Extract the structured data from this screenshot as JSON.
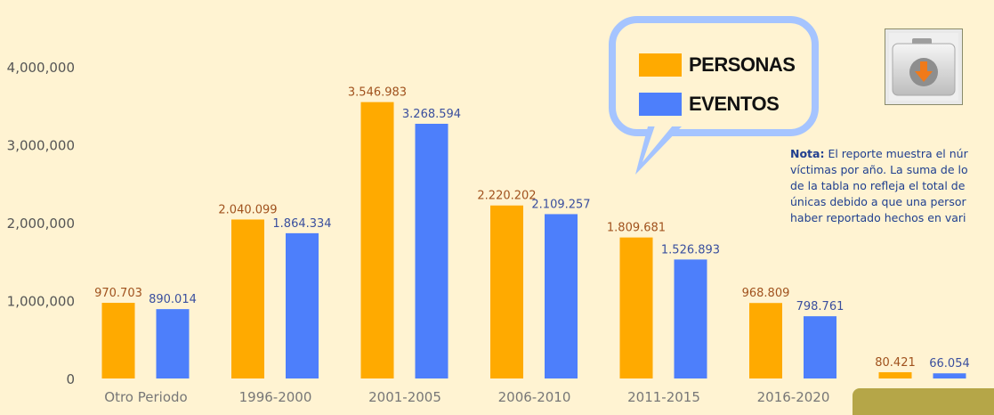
{
  "chart_data": {
    "type": "bar",
    "categories": [
      "Otro Periodo",
      "1996-2000",
      "2001-2005",
      "2006-2010",
      "2011-2015",
      "2016-2020",
      ""
    ],
    "series": [
      {
        "name": "PERSONAS",
        "color": "#ffaa00",
        "label_color": "#a0521e",
        "values": [
          970703,
          2040099,
          3546983,
          2220202,
          1809681,
          968809,
          80421
        ],
        "labels": [
          "970.703",
          "2.040.099",
          "3.546.983",
          "2.220.202",
          "1.809.681",
          "968.809",
          "80.421"
        ]
      },
      {
        "name": "EVENTOS",
        "color": "#4d7ffb",
        "label_color": "#3a4f9e",
        "values": [
          890014,
          1864334,
          3268594,
          2109257,
          1526893,
          798761,
          66054
        ],
        "labels": [
          "890.014",
          "1.864.334",
          "3.268.594",
          "2.109.257",
          "1.526.893",
          "798.761",
          "66.054"
        ]
      }
    ],
    "y_ticks": [
      0,
      1000000,
      2000000,
      3000000,
      4000000
    ],
    "y_tick_labels": [
      "0",
      "1,000,000",
      "2,000,000",
      "3,000,000",
      "4,000,000"
    ],
    "ylim": [
      0,
      4000000
    ],
    "grid": false,
    "legend_position": "top-right"
  },
  "legend": {
    "personas": "PERSONAS",
    "eventos": "EVENTOS"
  },
  "note": {
    "bold": "Nota:",
    "lines": [
      " El reporte muestra el núr",
      "víctimas por año. La suma de lo",
      "de la tabla no refleja el total de",
      "únicas debido a que una persor",
      "haber reportado hechos en vari"
    ]
  },
  "download_icon": "download-folder-icon"
}
